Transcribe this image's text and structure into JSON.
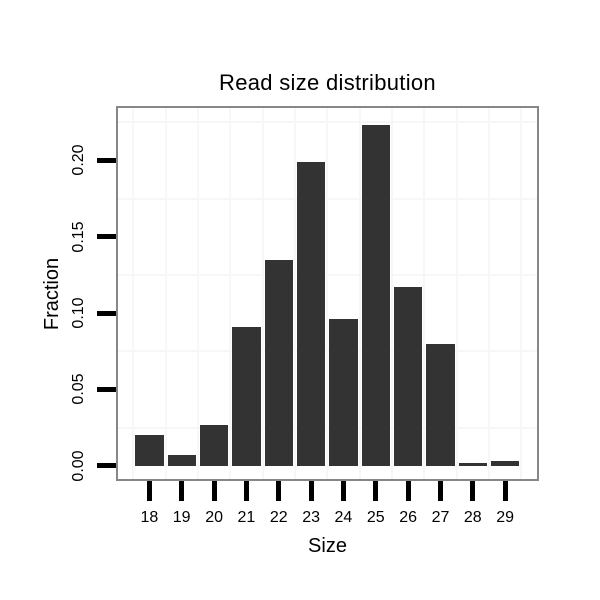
{
  "chart_data": {
    "type": "bar",
    "title": "Read size distribution",
    "xlabel": "Size",
    "ylabel": "Fraction",
    "categories": [
      "18",
      "19",
      "20",
      "21",
      "22",
      "23",
      "24",
      "25",
      "26",
      "27",
      "28",
      "29"
    ],
    "values": [
      0.02,
      0.007,
      0.027,
      0.091,
      0.135,
      0.199,
      0.096,
      0.223,
      0.117,
      0.08,
      0.002,
      0.003
    ],
    "yticks": [
      0.0,
      0.05,
      0.1,
      0.15,
      0.2
    ],
    "ytick_labels": [
      "0.00",
      "0.05",
      "0.10",
      "0.15",
      "0.20"
    ],
    "ylim": [
      -0.009,
      0.235
    ],
    "legend": "none",
    "grid": {
      "show": true,
      "horizontal_line_values": [
        0.025,
        0.075,
        0.125,
        0.175,
        0.225
      ],
      "vertical_lines": "between-categories"
    },
    "colors": {
      "bar": "#333333",
      "panel_border": "#878787",
      "gridline": "#f7f7f7",
      "tick": "#000000",
      "text": "#000000",
      "background": "#ffffff"
    }
  }
}
